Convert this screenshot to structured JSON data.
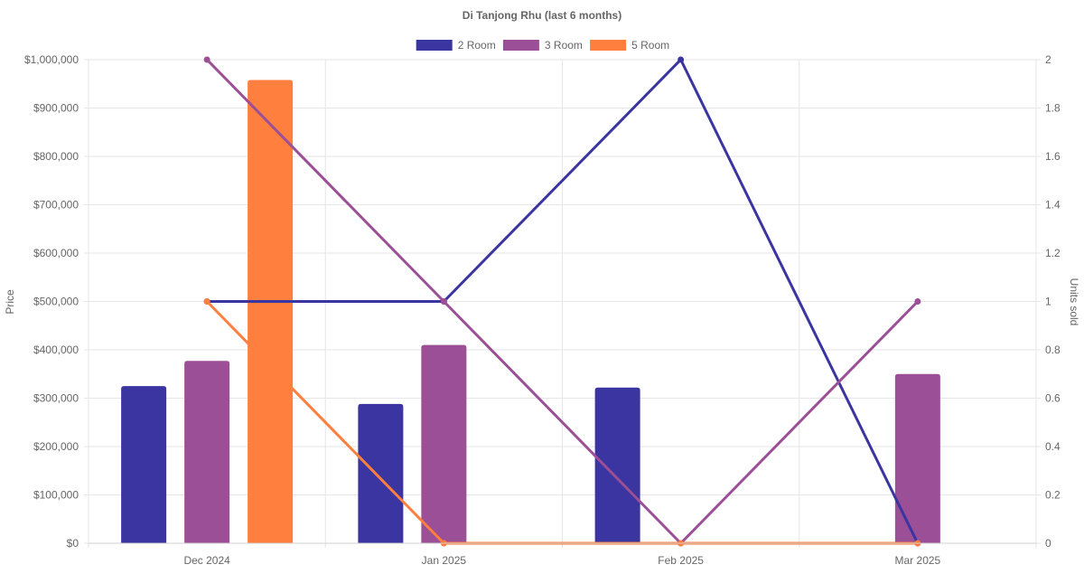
{
  "chart_data": {
    "type": "bar",
    "title": "Di Tanjong Rhu (last 6 months)",
    "categories": [
      "Dec 2024",
      "Jan 2025",
      "Feb 2025",
      "Mar 2025"
    ],
    "y_left": {
      "label": "Price",
      "min": 0,
      "max": 1000000,
      "ticks": [
        0,
        100000,
        200000,
        300000,
        400000,
        500000,
        600000,
        700000,
        800000,
        900000,
        1000000
      ],
      "tick_labels": [
        "$0",
        "$100,000",
        "$200,000",
        "$300,000",
        "$400,000",
        "$500,000",
        "$600,000",
        "$700,000",
        "$800,000",
        "$900,000",
        "$1,000,000"
      ]
    },
    "y_right": {
      "label": "Units sold",
      "min": 0,
      "max": 2,
      "ticks": [
        0,
        0.2,
        0.4,
        0.6,
        0.8,
        1,
        1.2,
        1.4,
        1.6,
        1.8,
        2
      ],
      "tick_labels": [
        "0",
        "0.2",
        "0.4",
        "0.6",
        "0.8",
        "1",
        "1.2",
        "1.4",
        "1.6",
        "1.8",
        "2"
      ]
    },
    "grid": true,
    "legend_position": "top-center",
    "series": [
      {
        "name": "2 Room",
        "color": "#3a35a0",
        "price": [
          325000,
          288000,
          322000,
          null
        ],
        "units_sold": [
          1,
          1,
          2,
          0
        ]
      },
      {
        "name": "3 Room",
        "color": "#9b4f96",
        "price": [
          377000,
          410000,
          null,
          350000
        ],
        "units_sold": [
          2,
          1,
          0,
          1
        ]
      },
      {
        "name": "5 Room",
        "color": "#ff7f3f",
        "price": [
          958000,
          null,
          null,
          null
        ],
        "units_sold": [
          1,
          0,
          0,
          0
        ]
      }
    ]
  }
}
